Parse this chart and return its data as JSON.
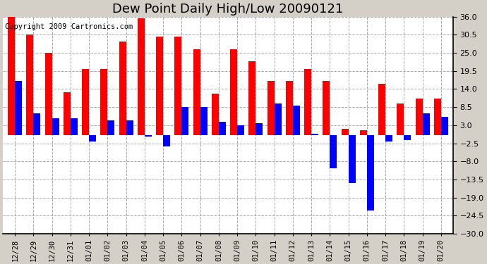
{
  "title": "Dew Point Daily High/Low 20090121",
  "copyright": "Copyright 2009 Cartronics.com",
  "dates": [
    "12/28",
    "12/29",
    "12/30",
    "12/31",
    "01/01",
    "01/02",
    "01/03",
    "01/04",
    "01/05",
    "01/06",
    "01/07",
    "01/08",
    "01/09",
    "01/10",
    "01/11",
    "01/12",
    "01/13",
    "01/14",
    "01/15",
    "01/16",
    "01/17",
    "01/18",
    "01/19",
    "01/20"
  ],
  "highs": [
    36.0,
    30.5,
    25.0,
    13.0,
    20.0,
    20.0,
    28.5,
    35.5,
    30.0,
    30.0,
    26.0,
    12.5,
    26.0,
    22.5,
    16.5,
    16.5,
    20.0,
    16.5,
    2.0,
    1.5,
    15.5,
    9.5,
    11.0,
    11.0
  ],
  "lows": [
    16.5,
    6.5,
    5.0,
    5.0,
    -2.0,
    4.5,
    4.5,
    -0.5,
    -3.5,
    8.5,
    8.5,
    4.0,
    3.0,
    3.5,
    9.5,
    9.0,
    0.5,
    -10.0,
    -14.5,
    -23.0,
    -2.0,
    -1.5,
    6.5,
    5.5
  ],
  "high_color": "#ff0000",
  "low_color": "#0000ff",
  "bg_color": "#d4d0c8",
  "plot_bg_color": "#ffffff",
  "ylim_min": -30.0,
  "ylim_max": 36.0,
  "yticks": [
    -30.0,
    -24.5,
    -19.0,
    -13.5,
    -8.0,
    -2.5,
    3.0,
    8.5,
    14.0,
    19.5,
    25.0,
    30.5,
    36.0
  ],
  "grid_color": "#aaaaaa",
  "title_fontsize": 13,
  "bar_width": 0.38,
  "copyright_fontsize": 7.5
}
